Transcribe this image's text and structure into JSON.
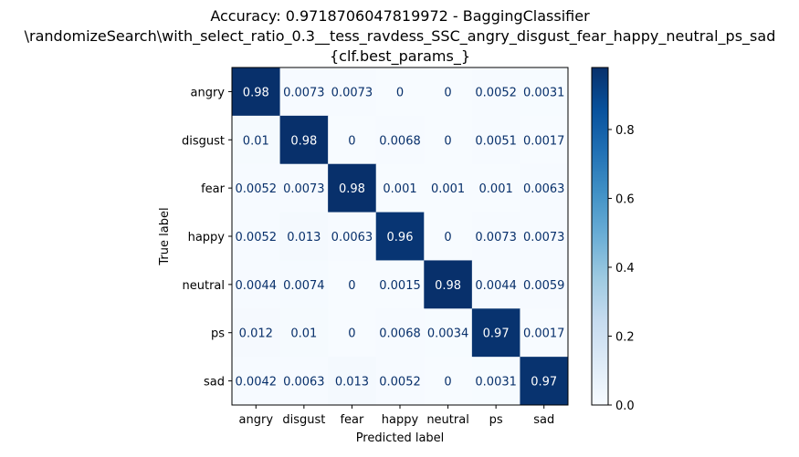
{
  "chart_data": {
    "type": "heatmap",
    "title_lines": [
      "Accuracy: 0.9718706047819972 - BaggingClassifier",
      "\\randomizeSearch\\with_select_ratio_0.3__tess_ravdess_SSC_angry_disgust_fear_happy_neutral_ps_sad",
      "{clf.best_params_}"
    ],
    "xlabel": "Predicted label",
    "ylabel": "True label",
    "x_categories": [
      "angry",
      "disgust",
      "fear",
      "happy",
      "neutral",
      "ps",
      "sad"
    ],
    "y_categories": [
      "angry",
      "disgust",
      "fear",
      "happy",
      "neutral",
      "ps",
      "sad"
    ],
    "values": [
      [
        0.98,
        0.0073,
        0.0073,
        0,
        0,
        0.0052,
        0.0031
      ],
      [
        0.01,
        0.98,
        0,
        0.0068,
        0,
        0.0051,
        0.0017
      ],
      [
        0.0052,
        0.0073,
        0.98,
        0.001,
        0.001,
        0.001,
        0.0063
      ],
      [
        0.0052,
        0.013,
        0.0063,
        0.96,
        0,
        0.0073,
        0.0073
      ],
      [
        0.0044,
        0.0074,
        0,
        0.0015,
        0.98,
        0.0044,
        0.0059
      ],
      [
        0.012,
        0.01,
        0,
        0.0068,
        0.0034,
        0.97,
        0.0017
      ],
      [
        0.0042,
        0.0063,
        0.013,
        0.0052,
        0,
        0.0031,
        0.97
      ]
    ],
    "cell_labels": [
      [
        "0.98",
        "0.0073",
        "0.0073",
        "0",
        "0",
        "0.0052",
        "0.0031"
      ],
      [
        "0.01",
        "0.98",
        "0",
        "0.0068",
        "0",
        "0.0051",
        "0.0017"
      ],
      [
        "0.0052",
        "0.0073",
        "0.98",
        "0.001",
        "0.001",
        "0.001",
        "0.0063"
      ],
      [
        "0.0052",
        "0.013",
        "0.0063",
        "0.96",
        "0",
        "0.0073",
        "0.0073"
      ],
      [
        "0.0044",
        "0.0074",
        "0",
        "0.0015",
        "0.98",
        "0.0044",
        "0.0059"
      ],
      [
        "0.012",
        "0.01",
        "0",
        "0.0068",
        "0.0034",
        "0.97",
        "0.0017"
      ],
      [
        "0.0042",
        "0.0063",
        "0.013",
        "0.0052",
        "0",
        "0.0031",
        "0.97"
      ]
    ],
    "colormap": "Blues",
    "colormap_stops": [
      "#f7fbff",
      "#deebf7",
      "#c6dbef",
      "#9ecae1",
      "#6baed6",
      "#4292c6",
      "#2171b5",
      "#08519c",
      "#08306b"
    ],
    "value_range": [
      0,
      0.98
    ],
    "colorbar": {
      "ticks": [
        0.0,
        0.2,
        0.4,
        0.6,
        0.8
      ],
      "tick_labels": [
        "0.0",
        "0.2",
        "0.4",
        "0.6",
        "0.8"
      ]
    },
    "grid": false
  }
}
